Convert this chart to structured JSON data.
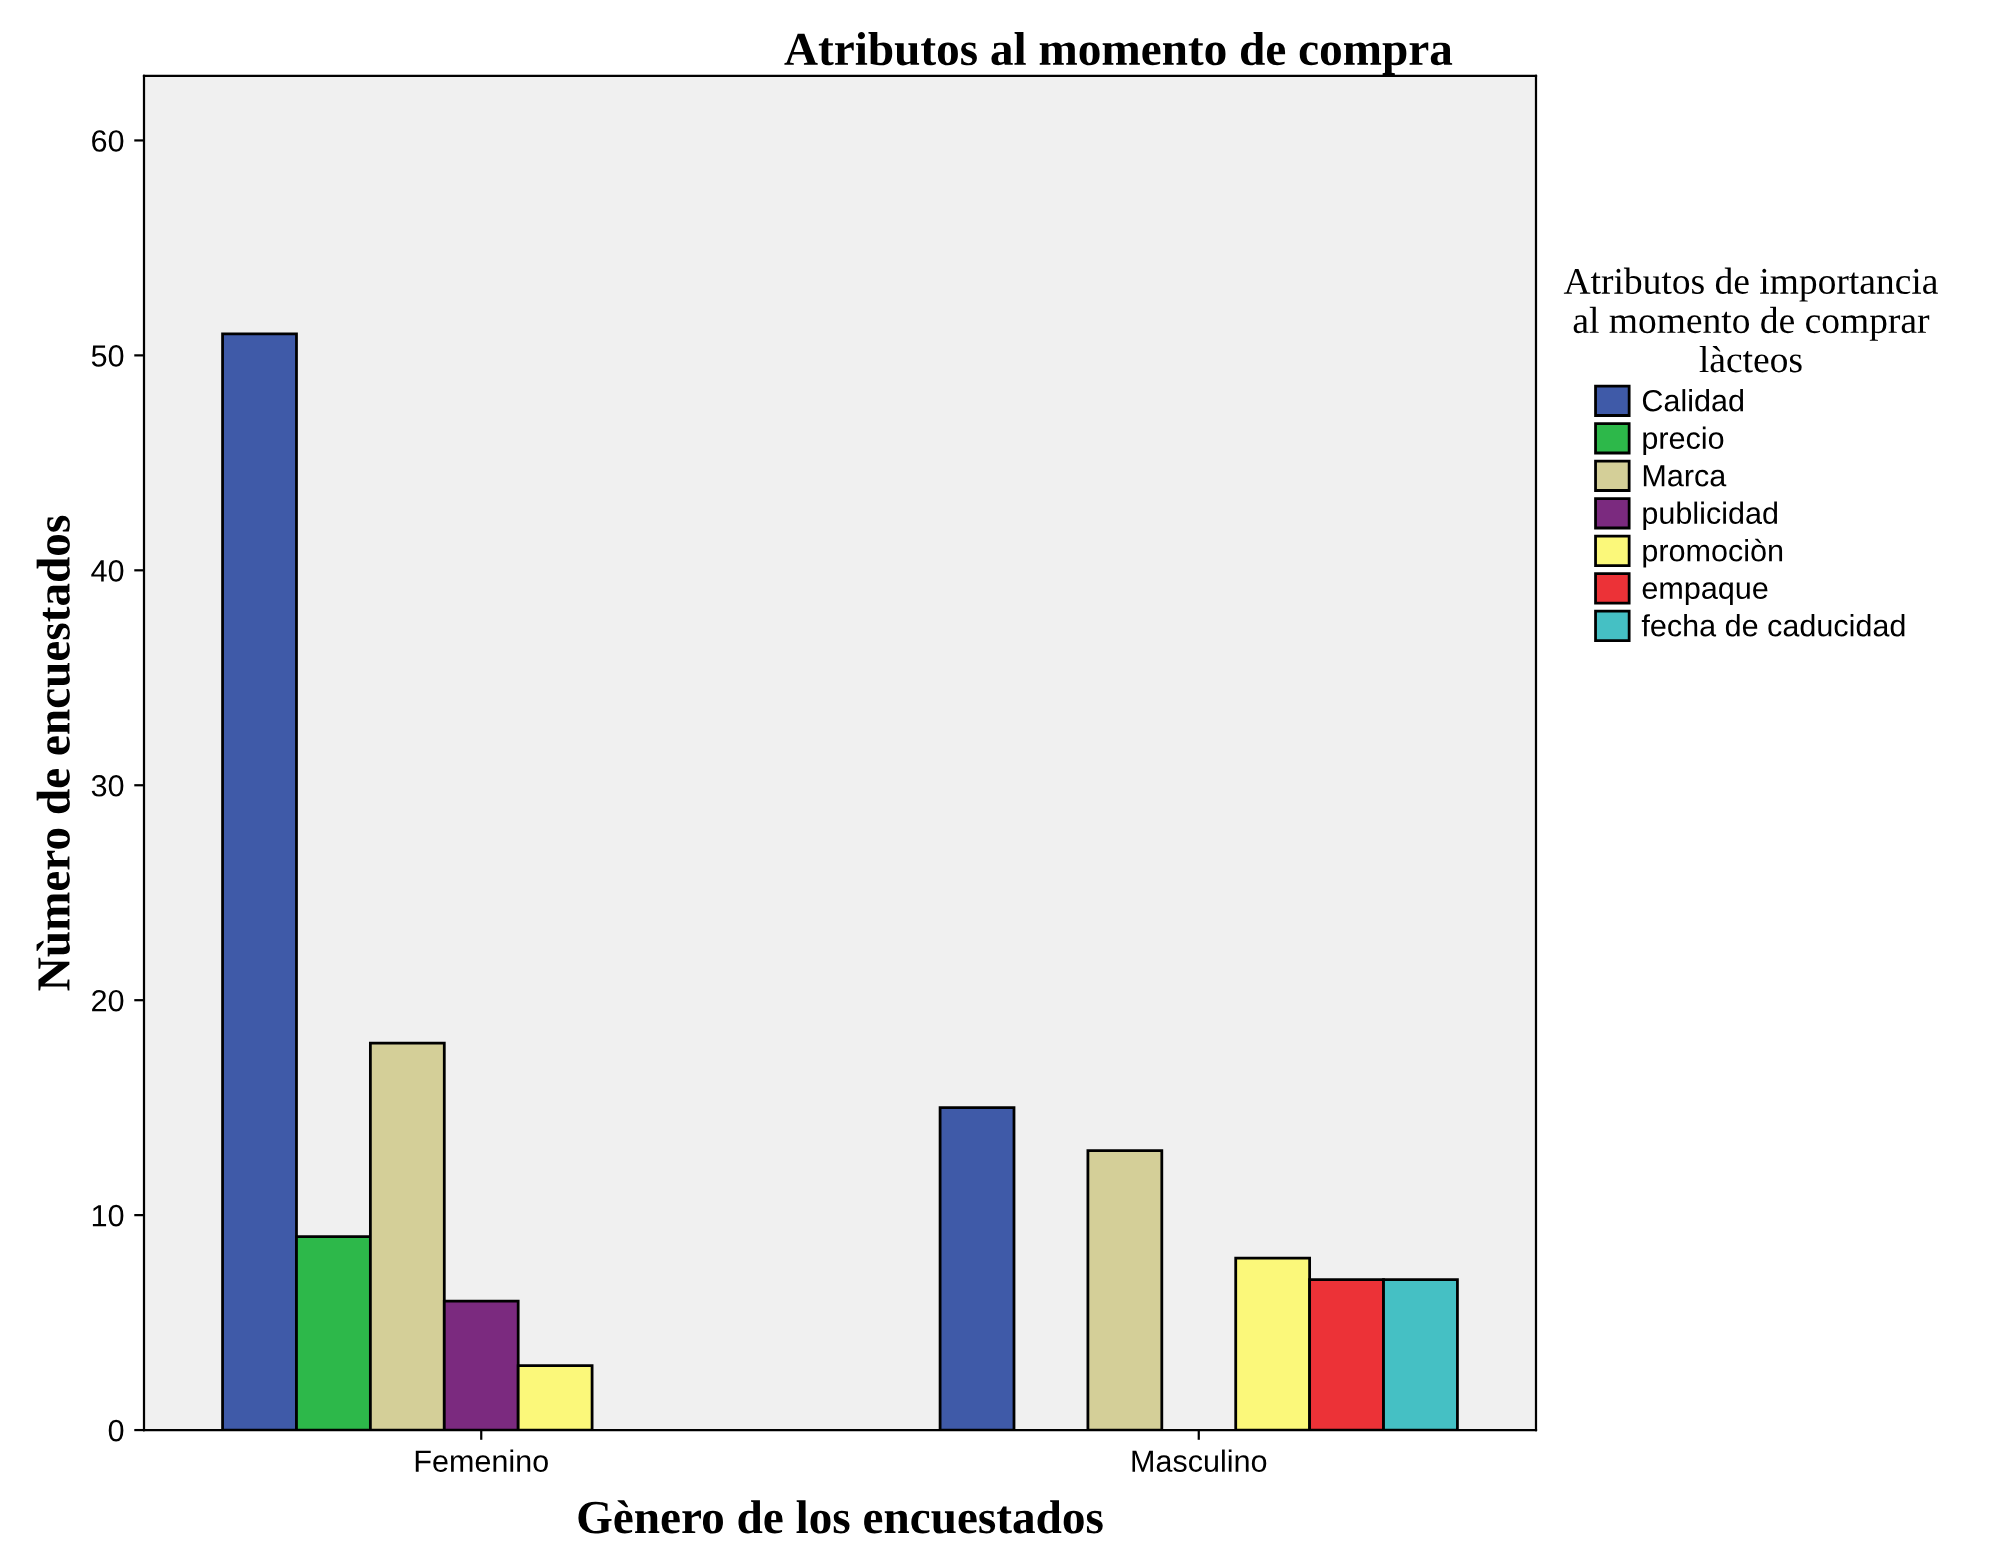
{
  "chart_data": {
    "type": "bar",
    "title": "Atributos al momento de compra",
    "xlabel": "Gènero de los encuestados",
    "ylabel": "Nùmero de encuestados",
    "legend_title": "Atributos de importancia\nal momento de comprar\nlàcteos",
    "categories": [
      "Femenino",
      "Masculino"
    ],
    "series": [
      {
        "name": "Calidad",
        "color": "#3f5aa8",
        "values": [
          51,
          15
        ]
      },
      {
        "name": "precio",
        "color": "#2db84a",
        "values": [
          9,
          null
        ]
      },
      {
        "name": "Marca",
        "color": "#d4cf98",
        "values": [
          18,
          13
        ]
      },
      {
        "name": "publicidad",
        "color": "#7b2a7f",
        "values": [
          6,
          null
        ]
      },
      {
        "name": "promociòn",
        "color": "#fbf87a",
        "values": [
          3,
          8
        ]
      },
      {
        "name": "empaque",
        "color": "#ec3237",
        "values": [
          null,
          7
        ]
      },
      {
        "name": "fecha de caducidad",
        "color": "#45c0c4",
        "values": [
          null,
          7
        ]
      }
    ],
    "ylim": [
      0,
      63
    ],
    "yticks": [
      0,
      10,
      20,
      30,
      40,
      50,
      60
    ],
    "grid": false,
    "legend": "right"
  }
}
